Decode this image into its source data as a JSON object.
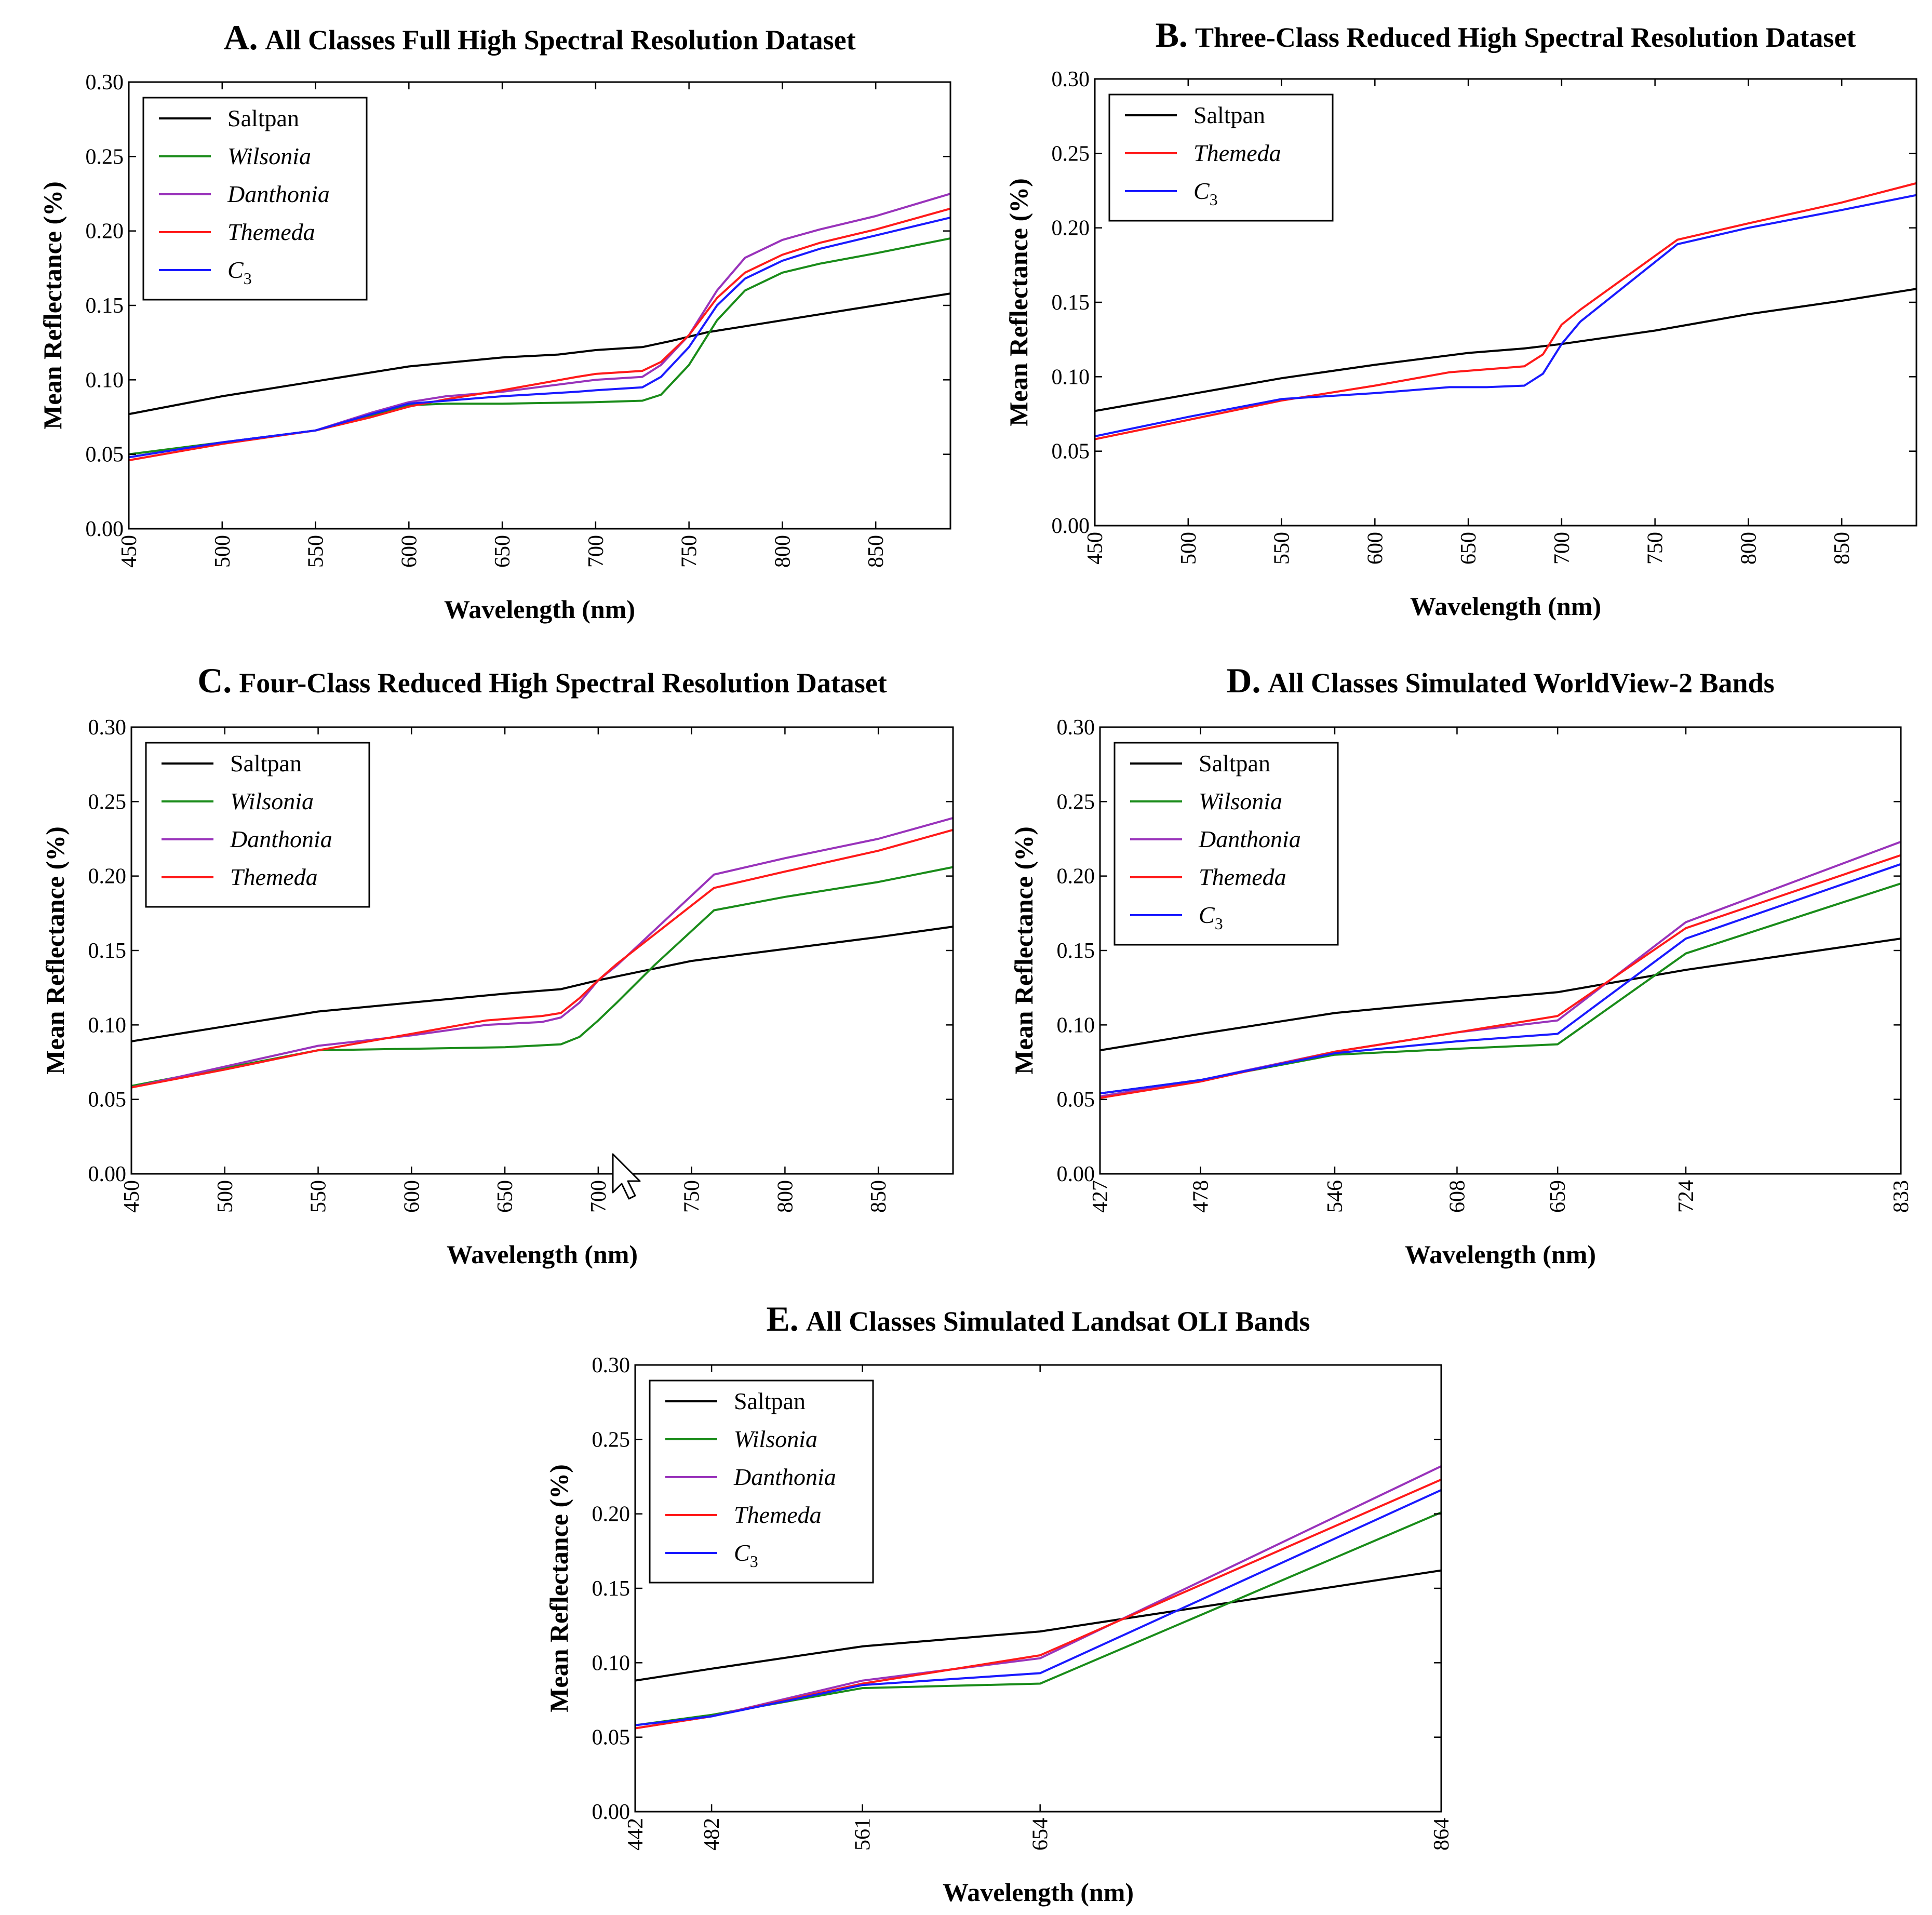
{
  "figure": {
    "colors": {
      "Saltpan": "#000000",
      "Wilsonia": "#1a8c1a",
      "Danthonia": "#9933bb",
      "Themeda": "#ff1a1a",
      "C3": "#1a1aff"
    },
    "cursor_icon": "mouse-pointer-icon"
  },
  "chart_data": [
    {
      "id": "A",
      "letter": "A.",
      "title": "All Classes Full High Spectral Resolution Dataset",
      "type": "line",
      "xlabel": "Wavelength (nm)",
      "ylabel": "Mean Reflectance (%)",
      "xlim": [
        450,
        890
      ],
      "ylim": [
        0.0,
        0.3
      ],
      "xticks": [
        450,
        500,
        550,
        600,
        650,
        700,
        750,
        800,
        850
      ],
      "yticks": [
        "0.00",
        "0.05",
        "0.10",
        "0.15",
        "0.20",
        "0.25",
        "0.30"
      ],
      "legend_position": "top-left",
      "series": [
        {
          "name": "Saltpan",
          "italic": false,
          "sub": "",
          "color_key": "Saltpan",
          "x": [
            450,
            500,
            550,
            600,
            650,
            680,
            700,
            725,
            740,
            760,
            800,
            850,
            890
          ],
          "y": [
            0.077,
            0.089,
            0.099,
            0.109,
            0.115,
            0.117,
            0.12,
            0.122,
            0.126,
            0.132,
            0.14,
            0.15,
            0.158
          ]
        },
        {
          "name": "Wilsonia",
          "italic": true,
          "sub": "",
          "color_key": "Wilsonia",
          "x": [
            450,
            500,
            550,
            580,
            600,
            620,
            650,
            700,
            725,
            735,
            750,
            765,
            780,
            800,
            820,
            850,
            890
          ],
          "y": [
            0.05,
            0.058,
            0.066,
            0.076,
            0.083,
            0.084,
            0.084,
            0.085,
            0.086,
            0.09,
            0.11,
            0.14,
            0.16,
            0.172,
            0.178,
            0.185,
            0.195
          ]
        },
        {
          "name": "Danthonia",
          "italic": true,
          "sub": "",
          "color_key": "Danthonia",
          "x": [
            450,
            500,
            550,
            580,
            600,
            620,
            650,
            700,
            725,
            735,
            750,
            765,
            780,
            800,
            820,
            850,
            890
          ],
          "y": [
            0.048,
            0.058,
            0.066,
            0.078,
            0.085,
            0.089,
            0.092,
            0.1,
            0.102,
            0.11,
            0.13,
            0.16,
            0.182,
            0.194,
            0.201,
            0.21,
            0.225
          ]
        },
        {
          "name": "Themeda",
          "italic": true,
          "sub": "",
          "color_key": "Themeda",
          "x": [
            450,
            500,
            550,
            580,
            600,
            620,
            650,
            690,
            700,
            725,
            735,
            750,
            765,
            780,
            800,
            820,
            850,
            890
          ],
          "y": [
            0.046,
            0.057,
            0.066,
            0.075,
            0.082,
            0.087,
            0.093,
            0.102,
            0.104,
            0.106,
            0.112,
            0.13,
            0.155,
            0.172,
            0.184,
            0.192,
            0.201,
            0.215
          ]
        },
        {
          "name": "C",
          "italic": true,
          "sub": "3",
          "color_key": "C3",
          "x": [
            450,
            500,
            550,
            580,
            600,
            620,
            650,
            690,
            700,
            725,
            735,
            750,
            765,
            780,
            800,
            820,
            850,
            890
          ],
          "y": [
            0.048,
            0.058,
            0.066,
            0.077,
            0.084,
            0.086,
            0.089,
            0.092,
            0.093,
            0.095,
            0.102,
            0.122,
            0.15,
            0.168,
            0.18,
            0.188,
            0.197,
            0.209
          ]
        }
      ]
    },
    {
      "id": "B",
      "letter": "B.",
      "title": "Three-Class Reduced High Spectral Resolution Dataset",
      "type": "line",
      "xlabel": "Wavelength (nm)",
      "ylabel": "Mean Reflectance (%)",
      "xlim": [
        450,
        890
      ],
      "ylim": [
        0.0,
        0.3
      ],
      "xticks": [
        450,
        500,
        550,
        600,
        650,
        700,
        750,
        800,
        850
      ],
      "yticks": [
        "0.00",
        "0.05",
        "0.10",
        "0.15",
        "0.20",
        "0.25",
        "0.30"
      ],
      "legend_position": "top-left",
      "series": [
        {
          "name": "Saltpan",
          "italic": false,
          "sub": "",
          "color_key": "Saltpan",
          "x": [
            450,
            500,
            550,
            600,
            650,
            680,
            700,
            750,
            800,
            850,
            890
          ],
          "y": [
            0.077,
            0.088,
            0.099,
            0.108,
            0.116,
            0.119,
            0.122,
            0.131,
            0.142,
            0.151,
            0.159
          ]
        },
        {
          "name": "Themeda",
          "italic": true,
          "sub": "",
          "color_key": "Themeda",
          "x": [
            450,
            500,
            550,
            600,
            640,
            660,
            680,
            690,
            700,
            710,
            762,
            800,
            850,
            890
          ],
          "y": [
            0.058,
            0.071,
            0.084,
            0.094,
            0.103,
            0.105,
            0.107,
            0.115,
            0.135,
            0.145,
            0.192,
            0.203,
            0.217,
            0.23
          ]
        },
        {
          "name": "C",
          "italic": true,
          "sub": "3",
          "color_key": "C3",
          "x": [
            450,
            500,
            550,
            600,
            640,
            660,
            680,
            690,
            700,
            710,
            762,
            800,
            850,
            890
          ],
          "y": [
            0.06,
            0.073,
            0.085,
            0.089,
            0.093,
            0.093,
            0.094,
            0.102,
            0.122,
            0.137,
            0.189,
            0.2,
            0.212,
            0.222
          ]
        }
      ]
    },
    {
      "id": "C",
      "letter": "C.",
      "title": "Four-Class Reduced High Spectral Resolution Dataset",
      "type": "line",
      "xlabel": "Wavelength (nm)",
      "ylabel": "Mean Reflectance (%)",
      "xlim": [
        450,
        890
      ],
      "ylim": [
        0.0,
        0.3
      ],
      "xticks": [
        450,
        500,
        550,
        600,
        650,
        700,
        750,
        800,
        850
      ],
      "yticks": [
        "0.00",
        "0.05",
        "0.10",
        "0.15",
        "0.20",
        "0.25",
        "0.30"
      ],
      "legend_position": "top-left",
      "series": [
        {
          "name": "Saltpan",
          "italic": false,
          "sub": "",
          "color_key": "Saltpan",
          "x": [
            450,
            500,
            550,
            600,
            650,
            680,
            700,
            750,
            800,
            850,
            890
          ],
          "y": [
            0.089,
            0.099,
            0.109,
            0.115,
            0.121,
            0.124,
            0.13,
            0.143,
            0.151,
            0.159,
            0.166
          ]
        },
        {
          "name": "Wilsonia",
          "italic": true,
          "sub": "",
          "color_key": "Wilsonia",
          "x": [
            450,
            500,
            550,
            600,
            650,
            680,
            690,
            700,
            710,
            730,
            762,
            800,
            850,
            890
          ],
          "y": [
            0.059,
            0.071,
            0.083,
            0.084,
            0.085,
            0.087,
            0.092,
            0.103,
            0.115,
            0.14,
            0.177,
            0.186,
            0.196,
            0.206
          ]
        },
        {
          "name": "Danthonia",
          "italic": true,
          "sub": "",
          "color_key": "Danthonia",
          "x": [
            450,
            500,
            550,
            600,
            640,
            670,
            680,
            690,
            700,
            710,
            762,
            800,
            850,
            890
          ],
          "y": [
            0.058,
            0.072,
            0.086,
            0.093,
            0.1,
            0.102,
            0.105,
            0.115,
            0.13,
            0.14,
            0.201,
            0.212,
            0.225,
            0.239
          ]
        },
        {
          "name": "Themeda",
          "italic": true,
          "sub": "",
          "color_key": "Themeda",
          "x": [
            450,
            500,
            550,
            600,
            640,
            670,
            680,
            690,
            700,
            710,
            762,
            800,
            850,
            890
          ],
          "y": [
            0.058,
            0.07,
            0.083,
            0.094,
            0.103,
            0.106,
            0.108,
            0.118,
            0.13,
            0.141,
            0.192,
            0.203,
            0.217,
            0.231
          ]
        }
      ]
    },
    {
      "id": "D",
      "letter": "D.",
      "title": "All Classes Simulated WorldView-2 Bands",
      "type": "line",
      "xlabel": "Wavelength (nm)",
      "ylabel": "Mean Reflectance (%)",
      "xlim": [
        427,
        833
      ],
      "ylim": [
        0.0,
        0.3
      ],
      "xticks": [
        427,
        478,
        546,
        608,
        659,
        724,
        833
      ],
      "yticks": [
        "0.00",
        "0.05",
        "0.10",
        "0.15",
        "0.20",
        "0.25",
        "0.30"
      ],
      "legend_position": "top-left",
      "series": [
        {
          "name": "Saltpan",
          "italic": false,
          "sub": "",
          "color_key": "Saltpan",
          "x": [
            427,
            478,
            546,
            608,
            659,
            724,
            833
          ],
          "y": [
            0.083,
            0.094,
            0.108,
            0.116,
            0.122,
            0.137,
            0.158
          ]
        },
        {
          "name": "Wilsonia",
          "italic": true,
          "sub": "",
          "color_key": "Wilsonia",
          "x": [
            427,
            478,
            546,
            608,
            659,
            724,
            833
          ],
          "y": [
            0.054,
            0.063,
            0.08,
            0.084,
            0.087,
            0.148,
            0.195
          ]
        },
        {
          "name": "Danthonia",
          "italic": true,
          "sub": "",
          "color_key": "Danthonia",
          "x": [
            427,
            478,
            546,
            608,
            659,
            724,
            833
          ],
          "y": [
            0.052,
            0.063,
            0.082,
            0.095,
            0.103,
            0.169,
            0.223
          ]
        },
        {
          "name": "Themeda",
          "italic": true,
          "sub": "",
          "color_key": "Themeda",
          "x": [
            427,
            478,
            546,
            608,
            659,
            724,
            833
          ],
          "y": [
            0.051,
            0.062,
            0.082,
            0.095,
            0.106,
            0.165,
            0.214
          ]
        },
        {
          "name": "C",
          "italic": true,
          "sub": "3",
          "color_key": "C3",
          "x": [
            427,
            478,
            546,
            608,
            659,
            724,
            833
          ],
          "y": [
            0.054,
            0.063,
            0.081,
            0.089,
            0.094,
            0.158,
            0.208
          ]
        }
      ]
    },
    {
      "id": "E",
      "letter": "E.",
      "title": "All Classes Simulated Landsat OLI Bands",
      "type": "line",
      "xlabel": "Wavelength (nm)",
      "ylabel": "Mean Reflectance (%)",
      "xlim": [
        442,
        864
      ],
      "ylim": [
        0.0,
        0.3
      ],
      "xticks": [
        442,
        482,
        561,
        654,
        864
      ],
      "yticks": [
        "0.00",
        "0.05",
        "0.10",
        "0.15",
        "0.20",
        "0.25",
        "0.30"
      ],
      "legend_position": "top-left",
      "series": [
        {
          "name": "Saltpan",
          "italic": false,
          "sub": "",
          "color_key": "Saltpan",
          "x": [
            442,
            482,
            561,
            654,
            864
          ],
          "y": [
            0.088,
            0.096,
            0.111,
            0.121,
            0.162
          ]
        },
        {
          "name": "Wilsonia",
          "italic": true,
          "sub": "",
          "color_key": "Wilsonia",
          "x": [
            442,
            482,
            561,
            654,
            864
          ],
          "y": [
            0.058,
            0.065,
            0.083,
            0.086,
            0.201
          ]
        },
        {
          "name": "Danthonia",
          "italic": true,
          "sub": "",
          "color_key": "Danthonia",
          "x": [
            442,
            482,
            561,
            654,
            864
          ],
          "y": [
            0.056,
            0.064,
            0.088,
            0.103,
            0.232
          ]
        },
        {
          "name": "Themeda",
          "italic": true,
          "sub": "",
          "color_key": "Themeda",
          "x": [
            442,
            482,
            561,
            654,
            864
          ],
          "y": [
            0.056,
            0.064,
            0.086,
            0.105,
            0.223
          ]
        },
        {
          "name": "C",
          "italic": true,
          "sub": "3",
          "color_key": "C3",
          "x": [
            442,
            482,
            561,
            654,
            864
          ],
          "y": [
            0.058,
            0.064,
            0.085,
            0.093,
            0.216
          ]
        }
      ]
    }
  ]
}
